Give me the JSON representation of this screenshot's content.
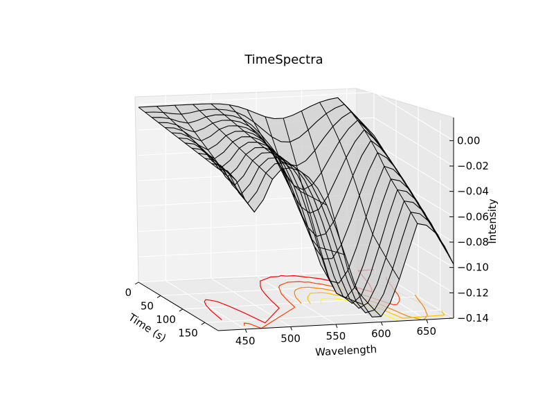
{
  "chart_data": {
    "type": "surface-3d",
    "title": "TimeSpectra",
    "xlabel": "Wavelength",
    "ylabel": "Time (s)",
    "zlabel": "Intensity",
    "xticks": [
      "450",
      "500",
      "550",
      "600",
      "650"
    ],
    "yticks": [
      "0",
      "50",
      "100",
      "150"
    ],
    "zticks": [
      "0.00",
      "−0.02",
      "−0.04",
      "−0.06",
      "−0.08",
      "−0.10",
      "−0.12",
      "−0.14"
    ],
    "xlim": [
      420,
      680
    ],
    "ylim": [
      0,
      180
    ],
    "zlim": [
      -0.14,
      0.01
    ],
    "surface": {
      "color": "#cccccc",
      "edge_color": "#000000",
      "wavelength_samples": [
        420,
        430,
        440,
        450,
        460,
        470,
        480,
        490,
        500,
        510,
        520,
        530,
        540,
        550,
        560,
        570,
        580,
        590,
        600,
        610,
        620,
        630,
        640,
        650,
        660,
        670,
        680
      ],
      "times": [
        0,
        15,
        30,
        45,
        60,
        75,
        90,
        105,
        120,
        135,
        150,
        165,
        180
      ],
      "description_of_shape": "baseline near 0.00 at early times; a broad dip toward -0.13 emerging around 560-600 nm that shifts and deepens over time"
    },
    "contours": {
      "colormap": "autumn",
      "colors": [
        "#ff0000",
        "#ff4000",
        "#ff8000",
        "#ffbf00",
        "#ffff00"
      ]
    },
    "grid": true
  }
}
